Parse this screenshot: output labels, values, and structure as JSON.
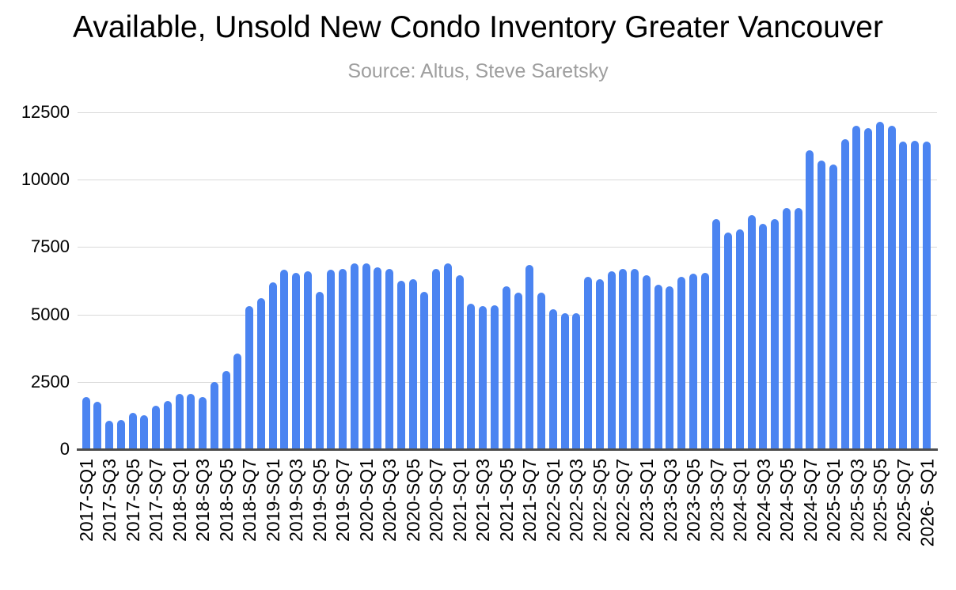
{
  "chart_data": {
    "type": "bar",
    "title": "Available, Unsold New Condo Inventory Greater Vancouver",
    "subtitle": "Source: Altus, Steve Saretsky",
    "xlabel": "",
    "ylabel": "",
    "ylim": [
      0,
      12500
    ],
    "yticks": [
      0,
      2500,
      5000,
      7500,
      10000,
      12500
    ],
    "grid": true,
    "legend_position": "none",
    "x_tick_every": 2,
    "categories": [
      "2017-SQ1",
      "2017-SQ2",
      "2017-SQ3",
      "2017-SQ4",
      "2017-SQ5",
      "2017-SQ6",
      "2017-SQ7",
      "2017-SQ8",
      "2018-SQ1",
      "2018-SQ2",
      "2018-SQ3",
      "2018-SQ4",
      "2018-SQ5",
      "2018-SQ6",
      "2018-SQ7",
      "2018-SQ8",
      "2019-SQ1",
      "2019-SQ2",
      "2019-SQ3",
      "2019-SQ4",
      "2019-SQ5",
      "2019-SQ6",
      "2019-SQ7",
      "2019-SQ8",
      "2020-SQ1",
      "2020-SQ2",
      "2020-SQ3",
      "2020-SQ4",
      "2020-SQ5",
      "2020-SQ6",
      "2020-SQ7",
      "2020-SQ8",
      "2021-SQ1",
      "2021-SQ2",
      "2021-SQ3",
      "2021-SQ4",
      "2021-SQ5",
      "2021-SQ6",
      "2021-SQ7",
      "2021-SQ8",
      "2022-SQ1",
      "2022-SQ2",
      "2022-SQ3",
      "2022-SQ4",
      "2022-SQ5",
      "2022-SQ6",
      "2022-SQ7",
      "2022-SQ8",
      "2023-SQ1",
      "2023-SQ2",
      "2023-SQ3",
      "2023-SQ4",
      "2023-SQ5",
      "2023-SQ6",
      "2023-SQ7",
      "2023-SQ8",
      "2024-SQ1",
      "2024-SQ2",
      "2024-SQ3",
      "2024-SQ4",
      "2024-SQ5",
      "2024-SQ6",
      "2024-SQ7",
      "2024-SQ8",
      "2025-SQ1",
      "2025-SQ2",
      "2025-SQ3",
      "2025-SQ4",
      "2025-SQ5",
      "2025-SQ6",
      "2025-SQ7",
      "2025-SQ8",
      "2026- SQ1"
    ],
    "values": [
      1950,
      1750,
      1050,
      1100,
      1350,
      1250,
      1600,
      1800,
      2050,
      2050,
      1950,
      2500,
      2900,
      3550,
      5300,
      5600,
      6200,
      6650,
      6550,
      6600,
      5850,
      6650,
      6700,
      6900,
      6900,
      6750,
      6700,
      6250,
      6300,
      5850,
      6700,
      6900,
      6450,
      5400,
      5300,
      5350,
      6050,
      5800,
      6850,
      5800,
      5200,
      5050,
      5050,
      6400,
      6300,
      6600,
      6700,
      6700,
      6450,
      6100,
      6050,
      6400,
      6500,
      6550,
      8550,
      8050,
      8150,
      8700,
      8350,
      8550,
      8950,
      8950,
      11100,
      10700,
      10550,
      11500,
      12000,
      11900,
      12150,
      12000,
      11400,
      11450,
      11400
    ],
    "colors": {
      "bar": "#4b84f1",
      "grid": "#d9d9d9",
      "axis": "#4d4d4d",
      "title": "#000000",
      "subtitle": "#9e9e9e",
      "tick_label": "#000000"
    }
  }
}
